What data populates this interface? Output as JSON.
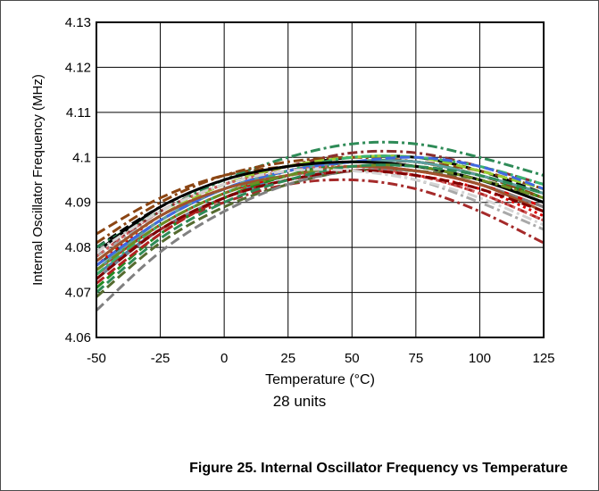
{
  "chart_data": {
    "type": "line",
    "ylabel": "Internal Oscillator Frequency (MHz)",
    "xlabel": "Temperature (°C)",
    "subtitle": "28 units",
    "caption": "Figure 25. Internal Oscillator Frequency vs Temperature",
    "xlim": [
      -50,
      125
    ],
    "ylim": [
      4.06,
      4.13
    ],
    "x_ticks": [
      -50,
      -25,
      0,
      25,
      50,
      75,
      100,
      125
    ],
    "x_tick_labels": [
      "-50",
      "-25",
      "0",
      "25",
      "50",
      "75",
      "100",
      "125"
    ],
    "y_ticks": [
      4.06,
      4.07,
      4.08,
      4.09,
      4.1,
      4.11,
      4.12,
      4.13
    ],
    "y_tick_labels": [
      "4.06",
      "4.07",
      "4.08",
      "4.09",
      "4.1",
      "4.11",
      "4.12",
      "4.13"
    ],
    "grid": true,
    "legend": "none",
    "x": [
      -50,
      -25,
      0,
      25,
      50,
      75,
      100,
      125
    ],
    "series": [
      {
        "color": "#000000",
        "dash": "dash",
        "values": [
          4.08,
          4.089,
          4.095,
          4.098,
          4.1,
          4.1,
          4.097,
          4.092
        ]
      },
      {
        "color": "#8b4513",
        "dash": "dash",
        "values": [
          4.083,
          4.091,
          4.096,
          4.098,
          4.099,
          4.099,
          4.097,
          4.093
        ]
      },
      {
        "color": "#2e8b57",
        "dash": "dashdot",
        "values": [
          4.08,
          4.088,
          4.095,
          4.1,
          4.103,
          4.103,
          4.1,
          4.096
        ]
      },
      {
        "color": "#8b2e2e",
        "dash": "dashdot",
        "values": [
          4.078,
          4.088,
          4.094,
          4.098,
          4.101,
          4.101,
          4.098,
          4.094
        ]
      },
      {
        "color": "#2f4f4f",
        "dash": "solid",
        "values": [
          4.076,
          4.086,
          4.093,
          4.097,
          4.099,
          4.099,
          4.096,
          4.092
        ]
      },
      {
        "color": "#4682b4",
        "dash": "solid",
        "values": [
          4.074,
          4.084,
          4.091,
          4.096,
          4.098,
          4.098,
          4.095,
          4.09
        ]
      },
      {
        "color": "#708090",
        "dash": "solid",
        "values": [
          4.073,
          4.084,
          4.091,
          4.095,
          4.097,
          4.097,
          4.094,
          4.089
        ]
      },
      {
        "color": "#dd0000",
        "dash": "solid",
        "values": [
          4.075,
          4.085,
          4.092,
          4.096,
          4.098,
          4.097,
          4.094,
          4.089
        ]
      },
      {
        "color": "#dd0000",
        "dash": "dot",
        "values": [
          4.076,
          4.087,
          4.093,
          4.096,
          4.097,
          4.096,
          4.093,
          4.087
        ]
      },
      {
        "color": "#a9a9a9",
        "dash": "dashdot",
        "values": [
          4.078,
          4.087,
          4.093,
          4.096,
          4.097,
          4.095,
          4.09,
          4.084
        ]
      },
      {
        "color": "#a52a2a",
        "dash": "dashdot",
        "values": [
          4.074,
          4.084,
          4.09,
          4.094,
          4.095,
          4.093,
          4.088,
          4.081
        ]
      },
      {
        "color": "#556b2f",
        "dash": "dash",
        "values": [
          4.069,
          4.081,
          4.089,
          4.094,
          4.097,
          4.097,
          4.095,
          4.091
        ]
      },
      {
        "color": "#808080",
        "dash": "dash",
        "values": [
          4.066,
          4.079,
          4.088,
          4.094,
          4.097,
          4.097,
          4.094,
          4.089
        ]
      },
      {
        "color": "#228b22",
        "dash": "dash",
        "values": [
          4.071,
          4.083,
          4.091,
          4.096,
          4.099,
          4.099,
          4.096,
          4.091
        ]
      },
      {
        "color": "#b22222",
        "dash": "dash",
        "values": [
          4.072,
          4.083,
          4.091,
          4.095,
          4.097,
          4.096,
          4.092,
          4.086
        ]
      },
      {
        "color": "#696969",
        "dash": "solid",
        "values": [
          4.077,
          4.087,
          4.093,
          4.097,
          4.099,
          4.098,
          4.095,
          4.09
        ]
      },
      {
        "color": "#8b4513",
        "dash": "dashdot",
        "values": [
          4.081,
          4.09,
          4.096,
          4.099,
          4.1,
          4.099,
          4.096,
          4.091
        ]
      },
      {
        "color": "#9acd32",
        "dash": "dash",
        "values": [
          4.077,
          4.087,
          4.094,
          4.098,
          4.1,
          4.1,
          4.097,
          4.093
        ]
      },
      {
        "color": "#5f9ea0",
        "dash": "solid",
        "values": [
          4.075,
          4.086,
          4.093,
          4.097,
          4.099,
          4.099,
          4.096,
          4.092
        ]
      },
      {
        "color": "#3cb371",
        "dash": "dashdot",
        "values": [
          4.074,
          4.085,
          4.092,
          4.097,
          4.1,
          4.1,
          4.098,
          4.094
        ]
      },
      {
        "color": "#4169e1",
        "dash": "dash",
        "values": [
          4.076,
          4.086,
          4.093,
          4.097,
          4.099,
          4.1,
          4.098,
          4.093
        ]
      },
      {
        "color": "#000000",
        "dash": "solid",
        "values": [
          4.079,
          4.089,
          4.095,
          4.098,
          4.099,
          4.098,
          4.095,
          4.09
        ]
      },
      {
        "color": "#cd5c5c",
        "dash": "dot",
        "values": [
          4.078,
          4.088,
          4.094,
          4.097,
          4.098,
          4.096,
          4.092,
          4.086
        ]
      },
      {
        "color": "#a0522d",
        "dash": "solid",
        "values": [
          4.077,
          4.087,
          4.093,
          4.096,
          4.098,
          4.097,
          4.094,
          4.088
        ]
      },
      {
        "color": "#6b8e23",
        "dash": "dashdot",
        "values": [
          4.075,
          4.085,
          4.092,
          4.096,
          4.098,
          4.098,
          4.095,
          4.091
        ]
      },
      {
        "color": "#800000",
        "dash": "dash",
        "values": [
          4.073,
          4.084,
          4.091,
          4.095,
          4.097,
          4.096,
          4.093,
          4.088
        ]
      },
      {
        "color": "#2e8b57",
        "dash": "dash",
        "values": [
          4.07,
          4.082,
          4.09,
          4.095,
          4.098,
          4.098,
          4.096,
          4.092
        ]
      },
      {
        "color": "#d3d3d3",
        "dash": "dashdot",
        "values": [
          4.079,
          4.088,
          4.094,
          4.097,
          4.097,
          4.095,
          4.091,
          4.085
        ]
      }
    ]
  }
}
